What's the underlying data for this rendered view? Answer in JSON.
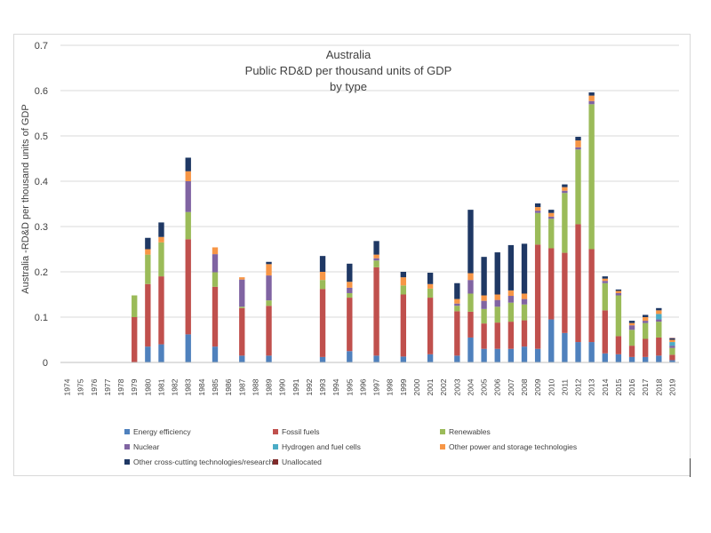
{
  "chart_data": {
    "type": "bar",
    "stacked": true,
    "title": [
      "Australia",
      "Public RD&D per thousand units of GDP",
      "by type"
    ],
    "xlabel": "",
    "ylabel": "Australia -RD&D per thousand units of GDP",
    "ylim": [
      0,
      0.7
    ],
    "yticks": [
      "0",
      "0.1",
      "0.2",
      "0.3",
      "0.4",
      "0.5",
      "0.6",
      "0.7"
    ],
    "grid": true,
    "legend_position": "bottom",
    "categories": [
      "1974",
      "1975",
      "1976",
      "1977",
      "1978",
      "1979",
      "1980",
      "1981",
      "1982",
      "1983",
      "1984",
      "1985",
      "1986",
      "1987",
      "1988",
      "1989",
      "1990",
      "1991",
      "1992",
      "1993",
      "1994",
      "1995",
      "1996",
      "1997",
      "1998",
      "1999",
      "2000",
      "2001",
      "2002",
      "2003",
      "2004",
      "2005",
      "2006",
      "2007",
      "2008",
      "2009",
      "2010",
      "2011",
      "2012",
      "2013",
      "2014",
      "2015",
      "2016",
      "2017",
      "2018",
      "2019"
    ],
    "series": [
      {
        "name": "Energy efficiency",
        "color": "#4f81bd",
        "values": [
          0,
          0,
          0,
          0,
          0,
          0,
          0.035,
          0.04,
          0,
          0.062,
          0,
          0.035,
          0,
          0.015,
          0,
          0.015,
          0,
          0,
          0,
          0.012,
          0,
          0.025,
          0,
          0.015,
          0,
          0.013,
          0,
          0.018,
          0,
          0.015,
          0.055,
          0.03,
          0.03,
          0.03,
          0.035,
          0.03,
          0.095,
          0.065,
          0.045,
          0.045,
          0.02,
          0.018,
          0.012,
          0.012,
          0.015,
          0.005
        ]
      },
      {
        "name": "Fossil fuels",
        "color": "#c0504d",
        "values": [
          0,
          0,
          0,
          0,
          0,
          0.1,
          0.138,
          0.15,
          0,
          0.21,
          0,
          0.132,
          0,
          0.105,
          0,
          0.11,
          0,
          0,
          0,
          0.15,
          0,
          0.118,
          0,
          0.195,
          0,
          0.137,
          0,
          0.125,
          0,
          0.098,
          0.057,
          0.056,
          0.058,
          0.06,
          0.058,
          0.23,
          0.157,
          0.177,
          0.26,
          0.205,
          0.095,
          0.04,
          0.025,
          0.04,
          0.04,
          0.012
        ]
      },
      {
        "name": "Renewables",
        "color": "#9bbb59",
        "values": [
          0,
          0,
          0,
          0,
          0,
          0.048,
          0.065,
          0.075,
          0,
          0.06,
          0,
          0.032,
          0,
          0.003,
          0,
          0.012,
          0,
          0,
          0,
          0.02,
          0,
          0.01,
          0,
          0.015,
          0,
          0.02,
          0,
          0.02,
          0,
          0.012,
          0.04,
          0.032,
          0.035,
          0.042,
          0.035,
          0.07,
          0.065,
          0.132,
          0.165,
          0.32,
          0.06,
          0.09,
          0.035,
          0.035,
          0.035,
          0.015
        ]
      },
      {
        "name": "Nuclear",
        "color": "#8064a2",
        "values": [
          0,
          0,
          0,
          0,
          0,
          0,
          0,
          0,
          0,
          0.068,
          0,
          0.04,
          0,
          0.06,
          0,
          0.055,
          0,
          0,
          0,
          0,
          0,
          0.012,
          0,
          0.005,
          0,
          0,
          0,
          0,
          0,
          0.005,
          0.03,
          0.018,
          0.015,
          0.015,
          0.012,
          0.005,
          0.005,
          0.005,
          0.005,
          0.007,
          0.005,
          0.005,
          0.01,
          0.005,
          0.005,
          0.005
        ]
      },
      {
        "name": "Hydrogen and fuel cells",
        "color": "#4bacc6",
        "values": [
          0,
          0,
          0,
          0,
          0,
          0,
          0,
          0,
          0,
          0,
          0,
          0,
          0,
          0,
          0,
          0,
          0,
          0,
          0,
          0,
          0,
          0,
          0,
          0,
          0,
          0,
          0,
          0,
          0,
          0,
          0,
          0,
          0,
          0,
          0,
          0,
          0,
          0,
          0,
          0,
          0,
          0,
          0,
          0,
          0.012,
          0.008
        ]
      },
      {
        "name": "Other power and storage technologies",
        "color": "#f79646",
        "values": [
          0,
          0,
          0,
          0,
          0,
          0,
          0.012,
          0.012,
          0,
          0.022,
          0,
          0.015,
          0,
          0.005,
          0,
          0.025,
          0,
          0,
          0,
          0.018,
          0,
          0.013,
          0,
          0.008,
          0,
          0.018,
          0,
          0.01,
          0,
          0.01,
          0.015,
          0.012,
          0.012,
          0.012,
          0.012,
          0.008,
          0.008,
          0.008,
          0.015,
          0.012,
          0.005,
          0.005,
          0.005,
          0.008,
          0.008,
          0.005
        ]
      },
      {
        "name": "Other cross-cutting technologies/research",
        "color": "#1f3864",
        "values": [
          0,
          0,
          0,
          0,
          0,
          0,
          0.025,
          0.032,
          0,
          0.03,
          0,
          0,
          0,
          0,
          0,
          0.005,
          0,
          0,
          0,
          0.035,
          0,
          0.04,
          0,
          0.03,
          0,
          0.012,
          0,
          0.025,
          0,
          0.035,
          0.14,
          0.085,
          0.093,
          0.1,
          0.11,
          0.008,
          0.007,
          0.006,
          0.008,
          0.007,
          0.005,
          0.003,
          0.005,
          0.005,
          0.005,
          0.003
        ]
      },
      {
        "name": "Unallocated",
        "color": "#7f2b2b",
        "values": [
          0,
          0,
          0,
          0,
          0,
          0,
          0,
          0,
          0,
          0,
          0,
          0,
          0,
          0,
          0,
          0,
          0,
          0,
          0,
          0,
          0,
          0,
          0,
          0,
          0,
          0,
          0,
          0,
          0,
          0,
          0,
          0,
          0,
          0,
          0,
          0,
          0,
          0,
          0,
          0,
          0,
          0,
          0,
          0,
          0,
          0.001
        ]
      }
    ]
  }
}
